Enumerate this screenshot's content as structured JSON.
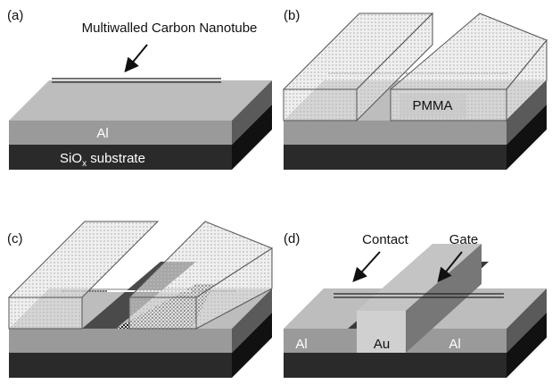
{
  "panel_a": {
    "label": "(a)",
    "nanotube_label": "Multiwalled Carbon Nanotube",
    "layer_al": "Al",
    "layer_substrate": {
      "prefix": "SiO",
      "sub": "x",
      "suffix": " substrate"
    }
  },
  "panel_b": {
    "label": "(b)",
    "resist_label": "PMMA"
  },
  "panel_c": {
    "label": "(c)"
  },
  "panel_d": {
    "label": "(d)",
    "contact_label": "Contact",
    "gate_label": "Gate",
    "left_electrode": "Al",
    "center_electrode": "Au",
    "right_electrode": "Al"
  }
}
